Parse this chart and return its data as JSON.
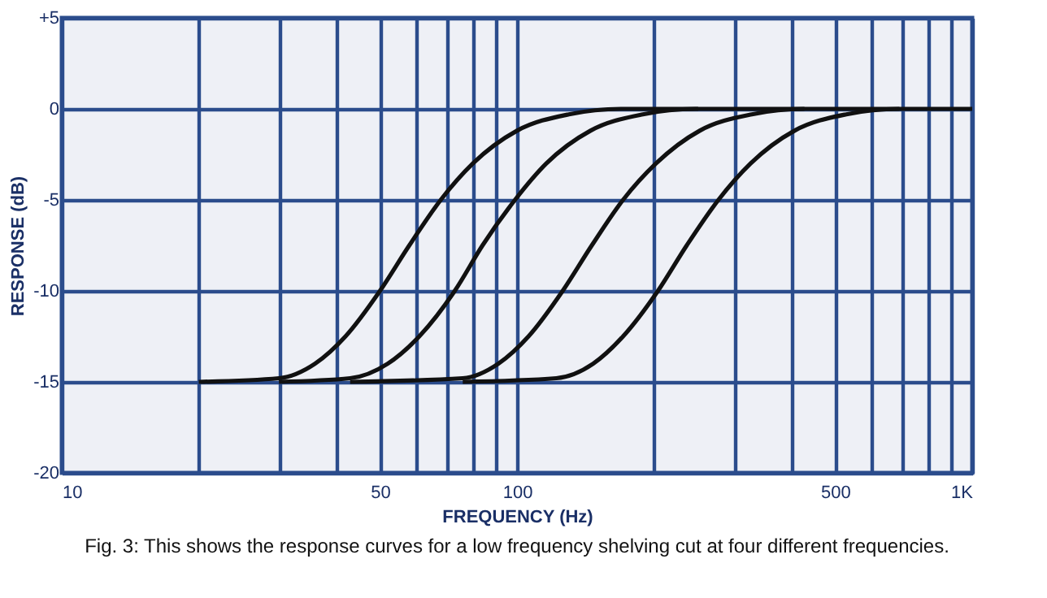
{
  "chart_data": {
    "type": "line",
    "xlabel": "FREQUENCY (Hz)",
    "ylabel": "RESPONSE (dB)",
    "log": "x",
    "grid": true,
    "legend": false,
    "marker": "none",
    "line_style": "solid",
    "xlim": [
      10,
      1000
    ],
    "ylim": [
      -20,
      5
    ],
    "xticks": [
      10,
      {
        "value": 20,
        "label": null
      },
      {
        "value": 30,
        "label": null
      },
      {
        "value": 40,
        "label": null
      },
      50,
      {
        "value": 60,
        "label": null
      },
      {
        "value": 70,
        "label": null
      },
      {
        "value": 80,
        "label": null
      },
      {
        "value": 90,
        "label": null
      },
      100,
      {
        "value": 200,
        "label": null
      },
      {
        "value": 300,
        "label": null
      },
      {
        "value": 400,
        "label": null
      },
      500,
      {
        "value": 600,
        "label": null
      },
      {
        "value": 700,
        "label": null
      },
      {
        "value": 800,
        "label": null
      },
      {
        "value": 900,
        "label": null
      },
      {
        "value": 1000,
        "label": "1K"
      }
    ],
    "yticks": [
      {
        "value": 5,
        "label": "+5"
      },
      0,
      -5,
      -10,
      -15,
      -20
    ],
    "annotations": [
      "Fig. 3: This shows the response curves for a low frequency shelving cut at four different frequencies."
    ],
    "series": [
      {
        "color": "#111111",
        "x": [
          20,
          30,
          36,
          42,
          50,
          58,
          68,
          80,
          100,
          130,
          170,
          250
        ],
        "values": [
          -15,
          -14.8,
          -14,
          -12.5,
          -10,
          -7.5,
          -5,
          -3,
          -1.2,
          -0.3,
          0,
          0
        ]
      },
      {
        "color": "#111111",
        "x": [
          30,
          43,
          52,
          61,
          73,
          84,
          99,
          116,
          145,
          189,
          247,
          428
        ],
        "values": [
          -15,
          -14.8,
          -14,
          -12.5,
          -10,
          -7.5,
          -5,
          -3,
          -1.2,
          -0.3,
          0,
          0
        ]
      },
      {
        "color": "#111111",
        "x": [
          43,
          76,
          91,
          106,
          126,
          146,
          171,
          202,
          252,
          328,
          428,
          692
        ],
        "values": [
          -15,
          -14.8,
          -14,
          -12.5,
          -10,
          -7.5,
          -5,
          -3,
          -1.2,
          -0.3,
          0,
          0
        ]
      },
      {
        "color": "#111111",
        "x": [
          76,
          122,
          147,
          171,
          204,
          236,
          277,
          326,
          407,
          529,
          692,
          1000
        ],
        "values": [
          -15,
          -14.8,
          -14,
          -12.5,
          -10,
          -7.5,
          -5,
          -3,
          -1.2,
          -0.3,
          0,
          0
        ]
      }
    ]
  }
}
